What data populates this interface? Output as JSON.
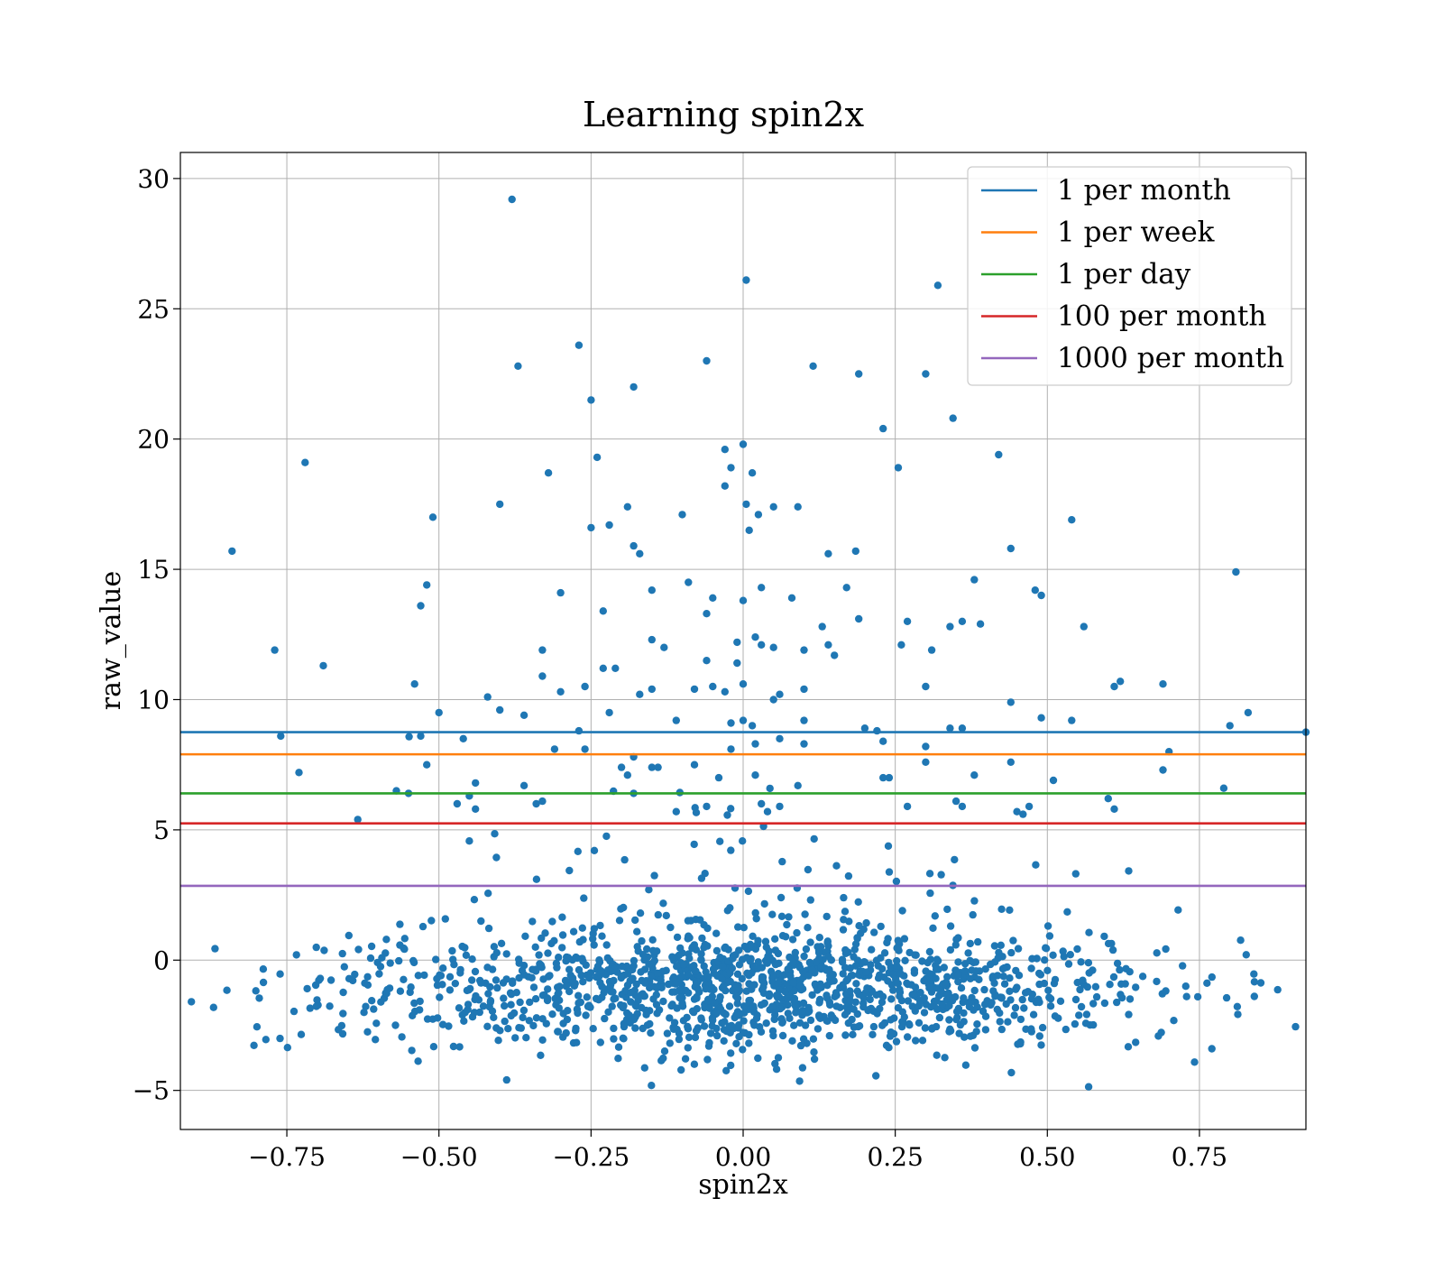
{
  "chart_data": {
    "type": "scatter",
    "title": "Learning spin2x",
    "xlabel": "spin2x",
    "ylabel": "raw_value",
    "xlim": [
      -0.925,
      0.925
    ],
    "ylim": [
      -6.5,
      31
    ],
    "x_ticks": [
      -0.75,
      -0.5,
      -0.25,
      0.0,
      0.25,
      0.5,
      0.75
    ],
    "x_tick_labels": [
      "−0.75",
      "−0.50",
      "−0.25",
      "0.00",
      "0.25",
      "0.50",
      "0.75"
    ],
    "y_ticks": [
      -5,
      0,
      5,
      10,
      15,
      20,
      25,
      30
    ],
    "y_tick_labels": [
      "−5",
      "0",
      "5",
      "10",
      "15",
      "20",
      "25",
      "30"
    ],
    "grid": true,
    "legend_position": "top-right",
    "scatter_color": "#1f77b4",
    "hlines": [
      {
        "name": "1 per month",
        "y": 8.75,
        "color": "#1f77b4"
      },
      {
        "name": "1 per week",
        "y": 7.9,
        "color": "#ff7f0e"
      },
      {
        "name": "1 per day",
        "y": 6.4,
        "color": "#2ca02c"
      },
      {
        "name": "100 per month",
        "y": 5.25,
        "color": "#d62728"
      },
      {
        "name": "1000 per month",
        "y": 2.85,
        "color": "#9467bd"
      }
    ],
    "points_outliers": [
      [
        -0.38,
        29.2
      ],
      [
        0.005,
        26.1
      ],
      [
        0.32,
        25.9
      ],
      [
        -0.27,
        23.6
      ],
      [
        -0.37,
        22.8
      ],
      [
        -0.06,
        23.0
      ],
      [
        0.115,
        22.8
      ],
      [
        0.19,
        22.5
      ],
      [
        0.3,
        22.5
      ],
      [
        -0.25,
        21.5
      ],
      [
        -0.18,
        22.0
      ],
      [
        0.345,
        20.8
      ],
      [
        0.23,
        20.4
      ],
      [
        -0.72,
        19.1
      ],
      [
        0.42,
        19.4
      ],
      [
        -0.24,
        19.3
      ],
      [
        -0.03,
        19.6
      ],
      [
        0.0,
        19.8
      ],
      [
        -0.02,
        18.9
      ],
      [
        0.015,
        18.7
      ],
      [
        0.255,
        18.9
      ],
      [
        -0.32,
        18.7
      ],
      [
        -0.03,
        18.2
      ],
      [
        -0.4,
        17.5
      ],
      [
        -0.51,
        17.0
      ],
      [
        -0.19,
        17.4
      ],
      [
        0.005,
        17.5
      ],
      [
        0.05,
        17.4
      ],
      [
        0.09,
        17.4
      ],
      [
        -0.1,
        17.1
      ],
      [
        0.025,
        17.1
      ],
      [
        0.54,
        16.9
      ],
      [
        -0.25,
        16.6
      ],
      [
        0.01,
        16.5
      ],
      [
        -0.22,
        16.7
      ],
      [
        -0.84,
        15.7
      ],
      [
        -0.18,
        15.9
      ],
      [
        -0.17,
        15.6
      ],
      [
        0.14,
        15.6
      ],
      [
        0.185,
        15.7
      ],
      [
        0.44,
        15.8
      ],
      [
        0.81,
        14.9
      ],
      [
        -0.52,
        14.4
      ],
      [
        -0.3,
        14.1
      ],
      [
        -0.09,
        14.5
      ],
      [
        -0.15,
        14.2
      ],
      [
        0.03,
        14.3
      ],
      [
        0.08,
        13.9
      ],
      [
        0.17,
        14.3
      ],
      [
        0.38,
        14.6
      ],
      [
        0.48,
        14.2
      ],
      [
        0.49,
        14.0
      ],
      [
        -0.53,
        13.6
      ],
      [
        -0.23,
        13.4
      ],
      [
        -0.06,
        13.3
      ],
      [
        -0.05,
        13.9
      ],
      [
        0.0,
        13.8
      ],
      [
        0.27,
        13.0
      ],
      [
        0.19,
        13.1
      ],
      [
        0.36,
        13.0
      ],
      [
        0.34,
        12.8
      ],
      [
        0.39,
        12.9
      ],
      [
        0.56,
        12.8
      ],
      [
        0.13,
        12.8
      ],
      [
        -0.77,
        11.9
      ],
      [
        -0.33,
        11.9
      ],
      [
        -0.15,
        12.3
      ],
      [
        0.02,
        12.4
      ],
      [
        -0.01,
        12.2
      ],
      [
        0.03,
        12.1
      ],
      [
        0.05,
        12.0
      ],
      [
        0.26,
        12.1
      ],
      [
        0.14,
        12.1
      ],
      [
        0.15,
        11.7
      ],
      [
        0.31,
        11.9
      ],
      [
        -0.69,
        11.3
      ],
      [
        -0.23,
        11.2
      ],
      [
        -0.21,
        11.2
      ],
      [
        -0.13,
        12.0
      ],
      [
        -0.06,
        11.5
      ],
      [
        -0.01,
        11.4
      ],
      [
        0.1,
        11.9
      ],
      [
        -0.54,
        10.6
      ],
      [
        -0.33,
        10.9
      ],
      [
        -0.3,
        10.3
      ],
      [
        -0.26,
        10.5
      ],
      [
        -0.42,
        10.1
      ],
      [
        -0.17,
        10.2
      ],
      [
        -0.15,
        10.4
      ],
      [
        -0.08,
        10.4
      ],
      [
        -0.05,
        10.5
      ],
      [
        -0.03,
        10.3
      ],
      [
        0.0,
        10.6
      ],
      [
        0.05,
        10.0
      ],
      [
        0.06,
        10.2
      ],
      [
        0.1,
        10.4
      ],
      [
        0.3,
        10.5
      ],
      [
        0.61,
        10.5
      ],
      [
        0.62,
        10.7
      ],
      [
        0.69,
        10.6
      ],
      [
        -0.5,
        9.5
      ],
      [
        -0.4,
        9.6
      ],
      [
        -0.36,
        9.4
      ],
      [
        -0.22,
        9.5
      ],
      [
        -0.11,
        9.2
      ],
      [
        -0.02,
        9.1
      ],
      [
        0.0,
        9.2
      ],
      [
        0.015,
        9.0
      ],
      [
        0.44,
        9.9
      ],
      [
        0.49,
        9.3
      ],
      [
        0.54,
        9.2
      ],
      [
        0.83,
        9.5
      ],
      [
        0.8,
        9.0
      ],
      [
        0.925,
        8.75
      ],
      [
        0.1,
        9.2
      ],
      [
        0.2,
        8.9
      ],
      [
        0.22,
        8.8
      ],
      [
        0.36,
        8.9
      ],
      [
        0.34,
        8.9
      ],
      [
        -0.76,
        8.6
      ],
      [
        -0.53,
        8.6
      ],
      [
        -0.46,
        8.5
      ],
      [
        -0.27,
        8.8
      ],
      [
        -0.31,
        8.1
      ],
      [
        -0.26,
        8.1
      ],
      [
        0.06,
        8.5
      ],
      [
        0.1,
        8.3
      ],
      [
        0.23,
        8.4
      ],
      [
        0.3,
        8.2
      ],
      [
        0.02,
        8.3
      ],
      [
        -0.02,
        8.1
      ],
      [
        -0.18,
        7.8
      ],
      [
        0.38,
        7.1
      ],
      [
        0.44,
        7.6
      ],
      [
        0.3,
        7.6
      ],
      [
        0.7,
        8.0
      ],
      [
        -0.73,
        7.2
      ],
      [
        -0.52,
        7.5
      ],
      [
        -0.08,
        7.5
      ],
      [
        -0.15,
        7.4
      ],
      [
        -0.14,
        7.4
      ],
      [
        -0.2,
        7.4
      ],
      [
        -0.19,
        7.1
      ],
      [
        -0.04,
        7.0
      ],
      [
        0.02,
        7.1
      ],
      [
        0.23,
        7.0
      ],
      [
        0.24,
        7.0
      ],
      [
        0.51,
        6.9
      ],
      [
        0.69,
        7.3
      ],
      [
        -0.36,
        6.7
      ],
      [
        -0.44,
        6.8
      ],
      [
        -0.18,
        6.4
      ],
      [
        0.09,
        6.7
      ],
      [
        0.79,
        6.6
      ],
      [
        -0.57,
        6.5
      ],
      [
        -0.55,
        6.4
      ],
      [
        -0.45,
        6.3
      ],
      [
        -0.34,
        6.0
      ],
      [
        -0.33,
        6.1
      ],
      [
        0.03,
        6.0
      ],
      [
        0.06,
        5.9
      ],
      [
        0.27,
        5.9
      ],
      [
        0.36,
        5.9
      ],
      [
        0.35,
        6.1
      ],
      [
        0.6,
        6.2
      ],
      [
        0.61,
        5.8
      ],
      [
        -0.47,
        6.0
      ],
      [
        -0.44,
        5.8
      ],
      [
        -0.11,
        5.7
      ],
      [
        -0.06,
        5.9
      ],
      [
        0.04,
        5.7
      ],
      [
        0.46,
        5.6
      ],
      [
        0.47,
        5.9
      ],
      [
        0.45,
        5.7
      ]
    ],
    "points_core_generated": {
      "note": "dense cloud near 0",
      "count": 1500
    }
  }
}
